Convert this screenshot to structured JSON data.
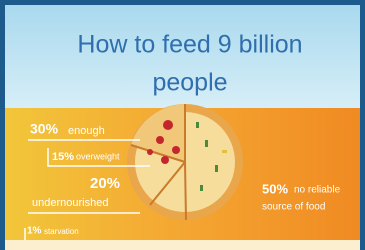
{
  "header": {
    "title_lines": [
      "How to feed 9 billion",
      "people"
    ]
  },
  "stats": [
    {
      "percent": "30%",
      "text": "enough"
    },
    {
      "percent": "15%",
      "text": "overweight"
    },
    {
      "percent": "20%",
      "text": "undernourished"
    },
    {
      "percent": "1%",
      "text": "starvation"
    },
    {
      "percent": "50%",
      "text_lines": [
        "no reliable",
        "source of food"
      ]
    }
  ]
}
